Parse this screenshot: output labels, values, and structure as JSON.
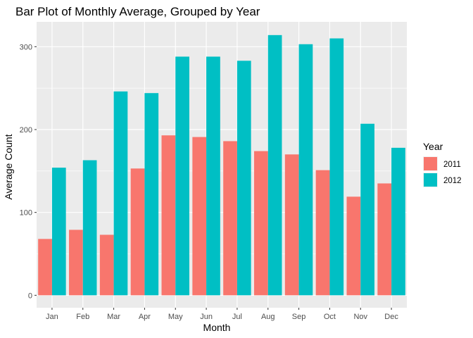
{
  "chart_data": {
    "type": "bar",
    "title": "Bar Plot of Monthly Average, Grouped by Year",
    "xlabel": "Month",
    "ylabel": "Average Count",
    "categories": [
      "Jan",
      "Feb",
      "Mar",
      "Apr",
      "May",
      "Jun",
      "Jul",
      "Aug",
      "Sep",
      "Oct",
      "Nov",
      "Dec"
    ],
    "series": [
      {
        "name": "2011",
        "values": [
          68,
          79,
          73,
          153,
          193,
          191,
          186,
          174,
          170,
          151,
          119,
          135
        ],
        "color": "#F8766D"
      },
      {
        "name": "2012",
        "values": [
          154,
          163,
          246,
          244,
          288,
          288,
          283,
          314,
          303,
          310,
          207,
          178
        ],
        "color": "#00BFC4"
      }
    ],
    "ylim": [
      -15,
      330
    ],
    "yticks": [
      0,
      100,
      200,
      300
    ],
    "grid": true,
    "panel_background": "#EBEBEB",
    "grid_color": "#FFFFFF",
    "legend": {
      "title": "Year",
      "position": "right"
    }
  }
}
